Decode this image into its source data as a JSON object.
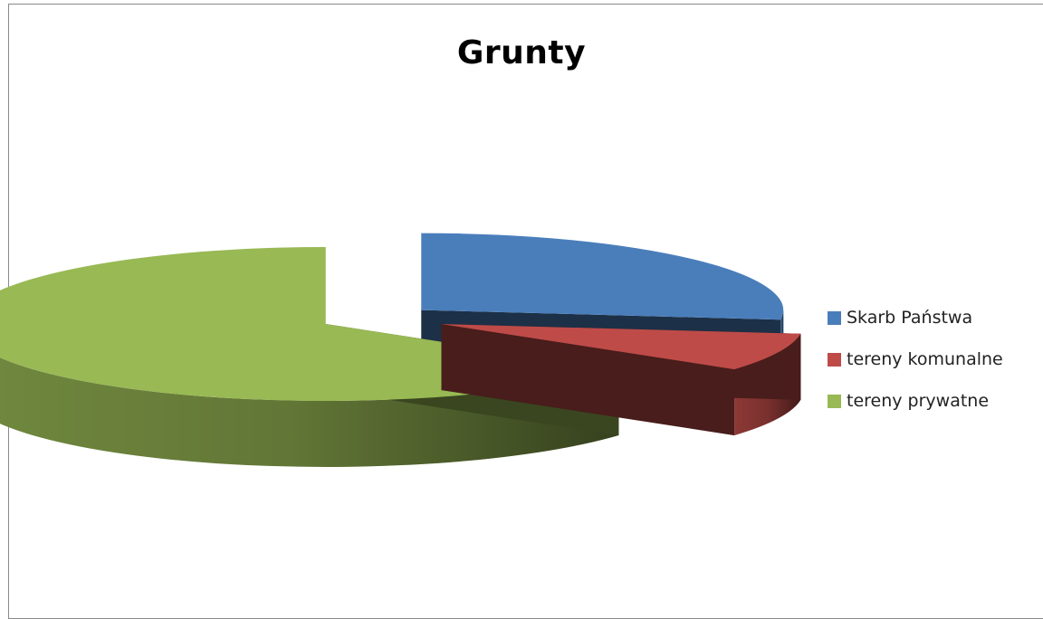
{
  "chart_data": {
    "type": "pie",
    "style": "3d-exploded",
    "title": "Grunty",
    "categories": [
      "Skarb Państwa",
      "tereny komunalne",
      "tereny prywatne"
    ],
    "values": [
      27,
      8,
      65
    ],
    "value_unit": "percent (estimated share)",
    "colors": [
      "#4a7ebb",
      "#be4b48",
      "#98b954"
    ],
    "start_angle_deg": 0,
    "direction": "clockwise",
    "legend": {
      "position": "right",
      "entries": [
        "Skarb Państwa",
        "tereny komunalne",
        "tereny prywatne"
      ]
    }
  }
}
